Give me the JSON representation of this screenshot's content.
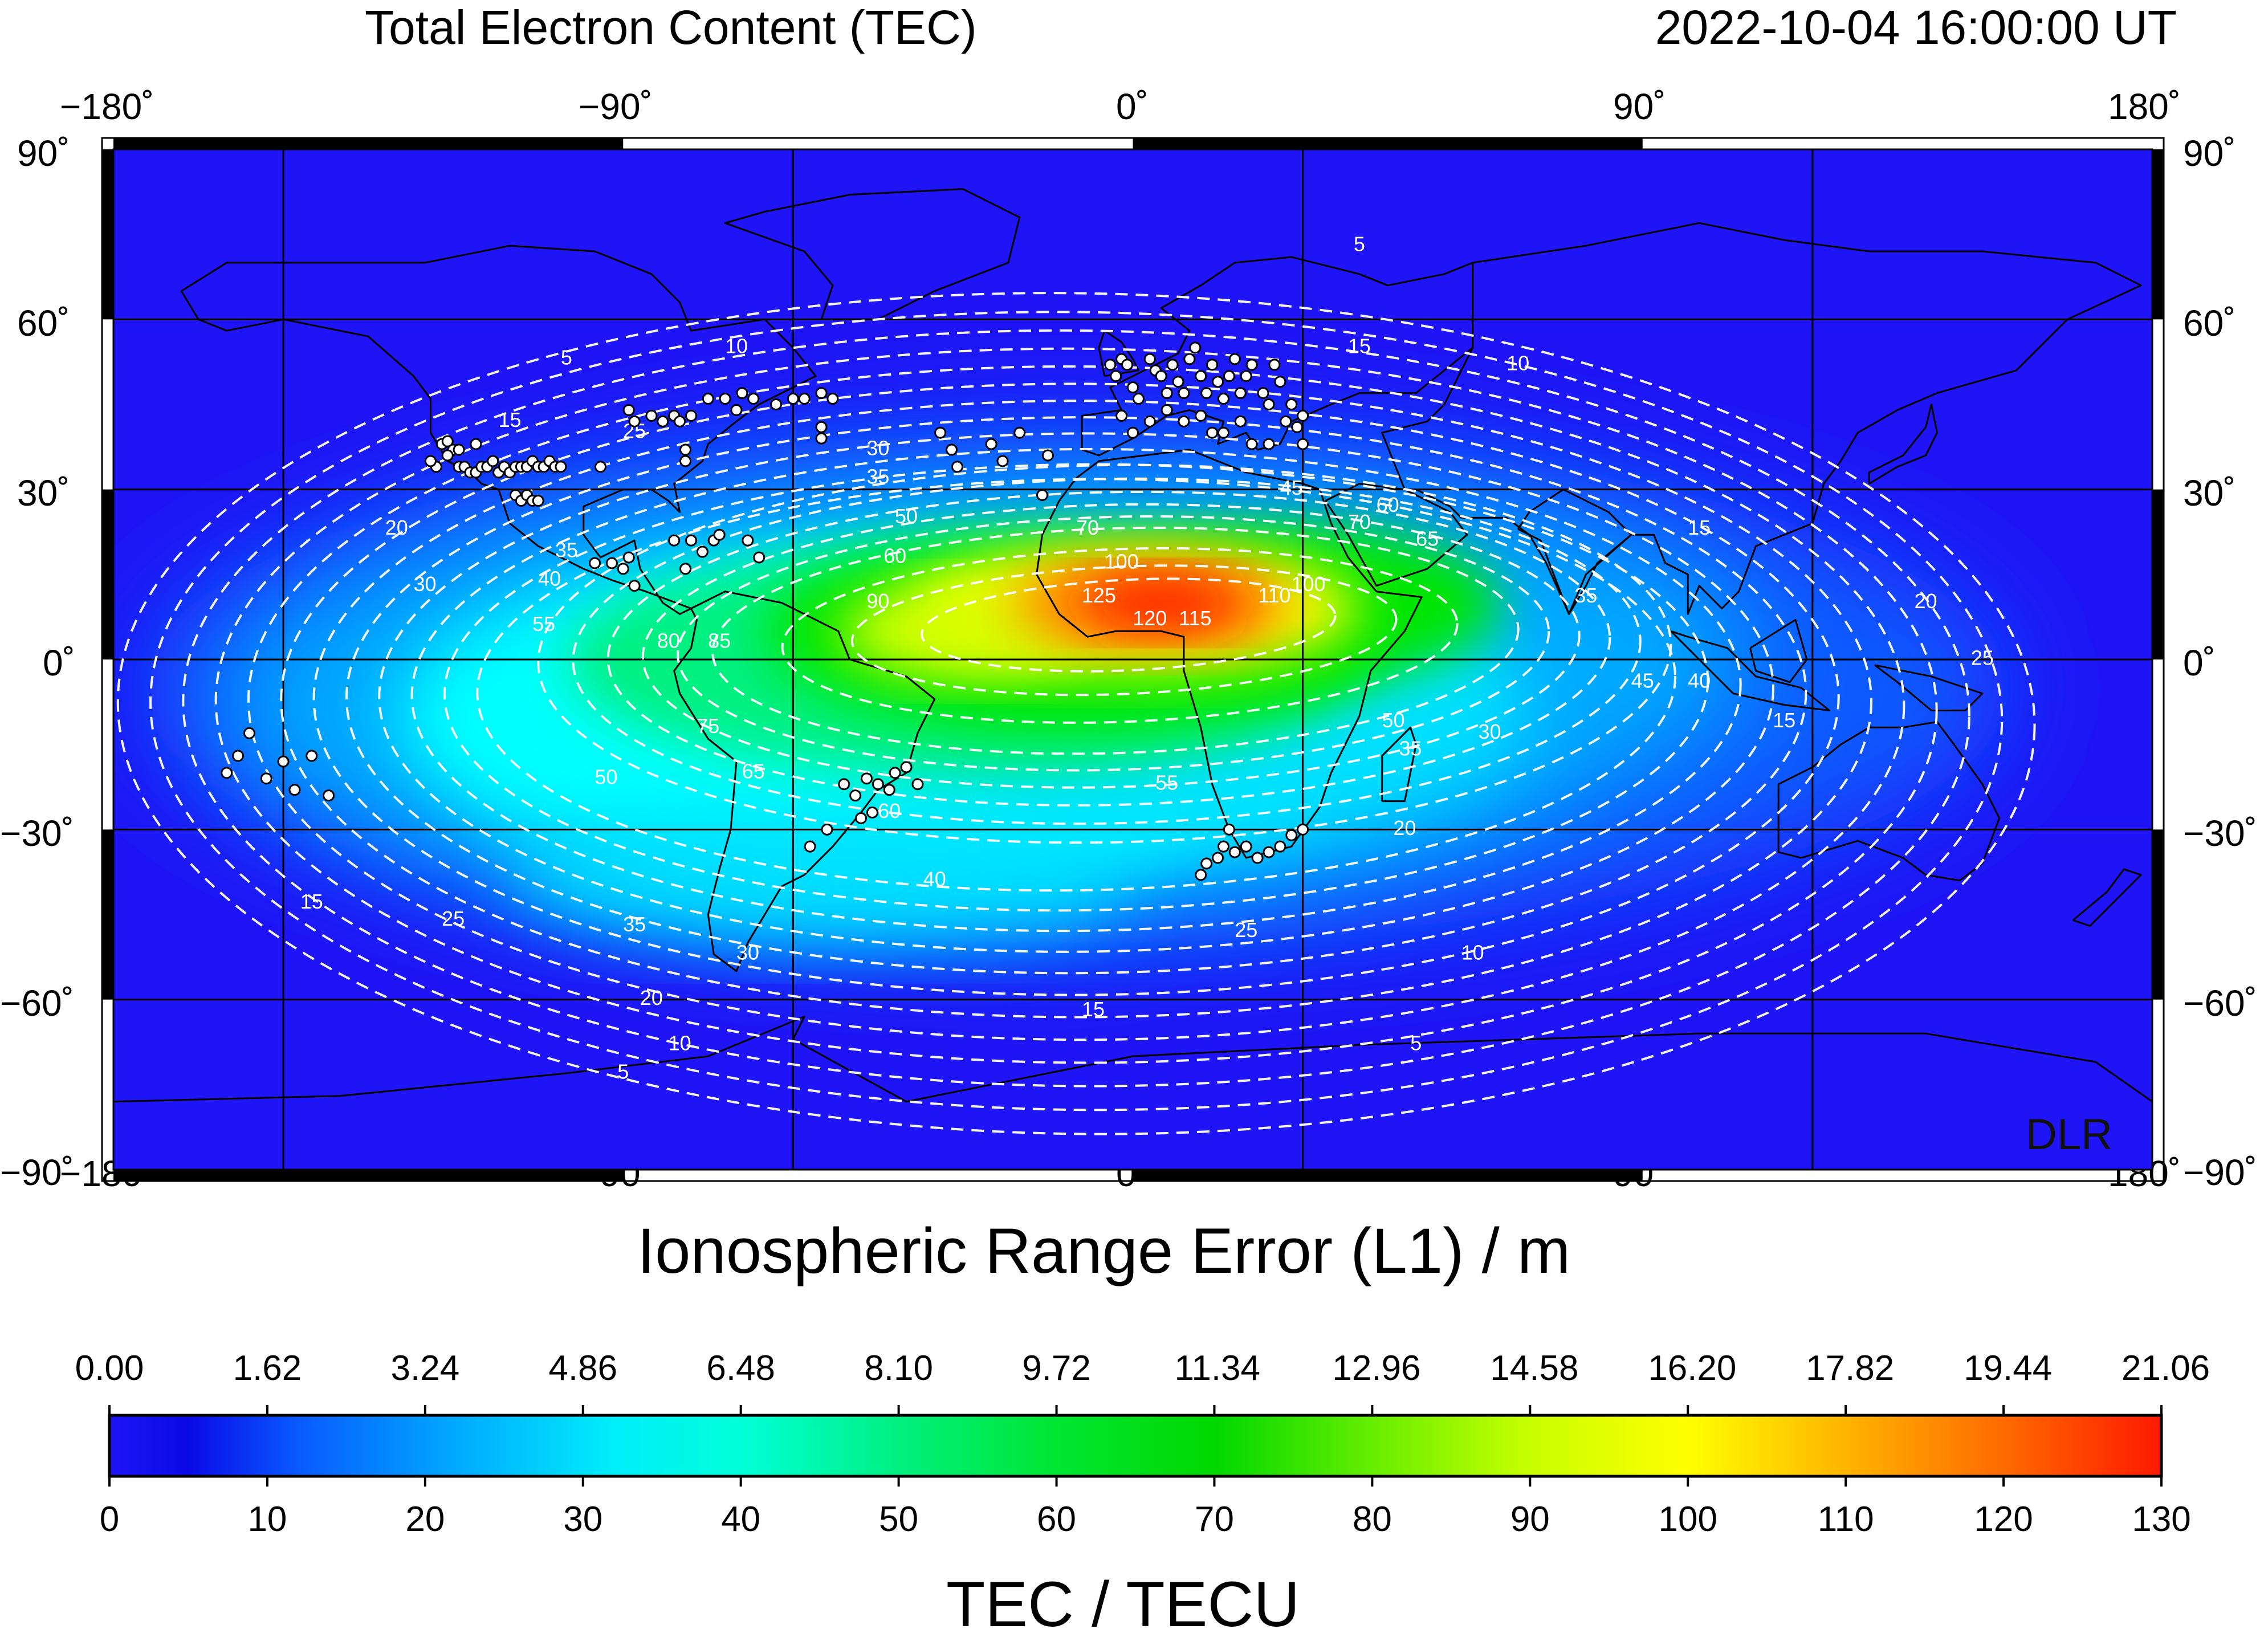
{
  "title": "Total Electron Content (TEC)",
  "timestamp": "2022-10-04  16:00:00 UT",
  "watermark": "DLR",
  "map": {
    "lon_ticks": [
      "−180˚",
      "−90˚",
      "0˚",
      "90˚",
      "180˚"
    ],
    "lat_ticks": [
      "90˚",
      "60˚",
      "30˚",
      "0˚",
      "−30˚",
      "−60˚",
      "−90˚"
    ],
    "lon_range": [
      -180,
      180
    ],
    "lat_range": [
      -90,
      90
    ],
    "graticule_step_deg": 30,
    "colors": {
      "low": "#1a1af5",
      "mid": "#00ffff",
      "green": "#00e600",
      "yellow": "#ffff00",
      "high": "#ff1a00"
    },
    "contour_labels": [
      {
        "text": "5",
        "lon": 40,
        "lat": 73
      },
      {
        "text": "5",
        "lon": -100,
        "lat": 53
      },
      {
        "text": "5",
        "lon": -90,
        "lat": -73
      },
      {
        "text": "5",
        "lon": 50,
        "lat": -68
      },
      {
        "text": "10",
        "lon": -70,
        "lat": 55
      },
      {
        "text": "10",
        "lon": 68,
        "lat": 52
      },
      {
        "text": "10",
        "lon": -80,
        "lat": -68
      },
      {
        "text": "10",
        "lon": 60,
        "lat": -52
      },
      {
        "text": "15",
        "lon": -110,
        "lat": 42
      },
      {
        "text": "15",
        "lon": 40,
        "lat": 55
      },
      {
        "text": "15",
        "lon": 100,
        "lat": 23
      },
      {
        "text": "15",
        "lon": 115,
        "lat": -11
      },
      {
        "text": "15",
        "lon": -145,
        "lat": -43
      },
      {
        "text": "15",
        "lon": -7,
        "lat": -62
      },
      {
        "text": "20",
        "lon": -130,
        "lat": 23
      },
      {
        "text": "20",
        "lon": 140,
        "lat": 10
      },
      {
        "text": "20",
        "lon": 48,
        "lat": -30
      },
      {
        "text": "20",
        "lon": -85,
        "lat": -60
      },
      {
        "text": "25",
        "lon": -88,
        "lat": 40
      },
      {
        "text": "25",
        "lon": 150,
        "lat": 0
      },
      {
        "text": "25",
        "lon": -120,
        "lat": -46
      },
      {
        "text": "25",
        "lon": 20,
        "lat": -48
      },
      {
        "text": "30",
        "lon": -125,
        "lat": 13
      },
      {
        "text": "30",
        "lon": -45,
        "lat": 37
      },
      {
        "text": "30",
        "lon": 63,
        "lat": -13
      },
      {
        "text": "30",
        "lon": -68,
        "lat": -52
      },
      {
        "text": "35",
        "lon": -45,
        "lat": 32
      },
      {
        "text": "35",
        "lon": -100,
        "lat": 19
      },
      {
        "text": "35",
        "lon": 49,
        "lat": -16
      },
      {
        "text": "35",
        "lon": -88,
        "lat": -47
      },
      {
        "text": "35",
        "lon": 80,
        "lat": 11
      },
      {
        "text": "40",
        "lon": -103,
        "lat": 14
      },
      {
        "text": "40",
        "lon": -35,
        "lat": -39
      },
      {
        "text": "40",
        "lon": 100,
        "lat": -4
      },
      {
        "text": "45",
        "lon": 28,
        "lat": 30
      },
      {
        "text": "45",
        "lon": 90,
        "lat": -4
      },
      {
        "text": "50",
        "lon": -40,
        "lat": 25
      },
      {
        "text": "50",
        "lon": -93,
        "lat": -21
      },
      {
        "text": "50",
        "lon": 46,
        "lat": -11
      },
      {
        "text": "55",
        "lon": -104,
        "lat": 6
      },
      {
        "text": "55",
        "lon": 6,
        "lat": -22
      },
      {
        "text": "60",
        "lon": -42,
        "lat": 18
      },
      {
        "text": "60",
        "lon": 45,
        "lat": 27
      },
      {
        "text": "60",
        "lon": -43,
        "lat": -27
      },
      {
        "text": "65",
        "lon": 52,
        "lat": 21
      },
      {
        "text": "65",
        "lon": -67,
        "lat": -20
      },
      {
        "text": "70",
        "lon": -8,
        "lat": 23
      },
      {
        "text": "70",
        "lon": 40,
        "lat": 24
      },
      {
        "text": "75",
        "lon": -75,
        "lat": -12
      },
      {
        "text": "80",
        "lon": -82,
        "lat": 3
      },
      {
        "text": "85",
        "lon": -73,
        "lat": 3
      },
      {
        "text": "90",
        "lon": -45,
        "lat": 10
      },
      {
        "text": "100",
        "lon": -2,
        "lat": 17
      },
      {
        "text": "100",
        "lon": 31,
        "lat": 13
      },
      {
        "text": "110",
        "lon": 25,
        "lat": 11
      },
      {
        "text": "120",
        "lon": 3,
        "lat": 7
      },
      {
        "text": "125",
        "lon": -6,
        "lat": 11
      },
      {
        "text": "115",
        "lon": 11,
        "lat": 7
      }
    ],
    "stations": [
      [
        -122,
        38
      ],
      [
        -121,
        38.5
      ],
      [
        -120,
        37
      ],
      [
        -119,
        34
      ],
      [
        -118,
        34
      ],
      [
        -117,
        33
      ],
      [
        -116,
        33
      ],
      [
        -115,
        34
      ],
      [
        -114,
        34
      ],
      [
        -113,
        35
      ],
      [
        -112,
        33
      ],
      [
        -111,
        34
      ],
      [
        -110,
        33
      ],
      [
        -109,
        34
      ],
      [
        -108,
        34
      ],
      [
        -107,
        34
      ],
      [
        -106,
        35
      ],
      [
        -105,
        34
      ],
      [
        -104,
        34
      ],
      [
        -103,
        35
      ],
      [
        -102,
        34
      ],
      [
        -101,
        34
      ],
      [
        -123,
        34
      ],
      [
        -124,
        35
      ],
      [
        -116,
        38
      ],
      [
        -119,
        37
      ],
      [
        -121,
        36
      ],
      [
        -109,
        29
      ],
      [
        -108,
        28
      ],
      [
        -107,
        29
      ],
      [
        -106,
        28
      ],
      [
        -105,
        28
      ],
      [
        -89,
        44
      ],
      [
        -88,
        42
      ],
      [
        -85,
        43
      ],
      [
        -83,
        42
      ],
      [
        -81,
        43
      ],
      [
        -80,
        42
      ],
      [
        -78,
        43
      ],
      [
        -75,
        46
      ],
      [
        -72,
        46
      ],
      [
        -70,
        44
      ],
      [
        -69,
        47
      ],
      [
        -67,
        46
      ],
      [
        -63,
        45
      ],
      [
        -60,
        46
      ],
      [
        -58,
        46
      ],
      [
        -55,
        47
      ],
      [
        -53,
        46
      ],
      [
        -55,
        41
      ],
      [
        -55,
        39
      ],
      [
        -94,
        34
      ],
      [
        -79,
        37
      ],
      [
        -79,
        35
      ],
      [
        -95,
        17
      ],
      [
        -92,
        17
      ],
      [
        -90,
        16
      ],
      [
        -88,
        13
      ],
      [
        -81,
        21
      ],
      [
        -78,
        21
      ],
      [
        -76,
        19
      ],
      [
        -74,
        21
      ],
      [
        -73,
        22
      ],
      [
        -68,
        21
      ],
      [
        -66,
        18
      ],
      [
        -79,
        16
      ],
      [
        -89,
        18
      ],
      [
        -34,
        40
      ],
      [
        -32,
        37
      ],
      [
        -31,
        34
      ],
      [
        -25,
        38
      ],
      [
        -23,
        35
      ],
      [
        -20,
        40
      ],
      [
        -16,
        29
      ],
      [
        -15,
        36
      ],
      [
        -4,
        52
      ],
      [
        -3,
        50
      ],
      [
        -2,
        53
      ],
      [
        -1,
        52
      ],
      [
        0,
        48
      ],
      [
        1,
        46
      ],
      [
        3,
        53
      ],
      [
        4,
        51
      ],
      [
        5,
        50
      ],
      [
        6,
        47
      ],
      [
        7,
        52
      ],
      [
        8,
        49
      ],
      [
        9,
        47
      ],
      [
        10,
        53
      ],
      [
        11,
        55
      ],
      [
        12,
        50
      ],
      [
        13,
        47
      ],
      [
        14,
        52
      ],
      [
        15,
        49
      ],
      [
        16,
        46
      ],
      [
        17,
        50
      ],
      [
        18,
        53
      ],
      [
        19,
        47
      ],
      [
        20,
        50
      ],
      [
        21,
        52
      ],
      [
        23,
        47
      ],
      [
        24,
        45
      ],
      [
        25,
        52
      ],
      [
        26,
        49
      ],
      [
        27,
        42
      ],
      [
        28,
        45
      ],
      [
        29,
        41
      ],
      [
        30,
        43
      ],
      [
        6,
        44
      ],
      [
        9,
        42
      ],
      [
        12,
        43
      ],
      [
        14,
        40
      ],
      [
        16,
        40
      ],
      [
        19,
        42
      ],
      [
        21,
        38
      ],
      [
        24,
        38
      ],
      [
        30,
        38
      ],
      [
        0,
        40
      ],
      [
        -2,
        43
      ],
      [
        3,
        42
      ],
      [
        -160,
        -20
      ],
      [
        -158,
        -17
      ],
      [
        -156,
        -13
      ],
      [
        -153,
        -21
      ],
      [
        -150,
        -18
      ],
      [
        -148,
        -23
      ],
      [
        -145,
        -17
      ],
      [
        -142,
        -24
      ],
      [
        -51,
        -22
      ],
      [
        -49,
        -24
      ],
      [
        -47,
        -21
      ],
      [
        -45,
        -22
      ],
      [
        -43,
        -23
      ],
      [
        -42,
        -20
      ],
      [
        -40,
        -19
      ],
      [
        -38,
        -22
      ],
      [
        -46,
        -27
      ],
      [
        -48,
        -28
      ],
      [
        -54,
        -30
      ],
      [
        -57,
        -33
      ],
      [
        12,
        -38
      ],
      [
        13,
        -36
      ],
      [
        15,
        -35
      ],
      [
        16,
        -33
      ],
      [
        18,
        -34
      ],
      [
        20,
        -33
      ],
      [
        22,
        -35
      ],
      [
        24,
        -34
      ],
      [
        26,
        -33
      ],
      [
        28,
        -31
      ],
      [
        30,
        -30
      ],
      [
        17,
        -30
      ]
    ]
  },
  "colorbar": {
    "title_top": "Ionospheric Range Error (L1) / m",
    "title_bottom": "TEC / TECU",
    "top_ticks": [
      "0.00",
      "1.62",
      "3.24",
      "4.86",
      "6.48",
      "8.10",
      "9.72",
      "11.34",
      "12.96",
      "14.58",
      "16.20",
      "17.82",
      "19.44",
      "21.06"
    ],
    "bottom_ticks": [
      "0",
      "10",
      "20",
      "30",
      "40",
      "50",
      "60",
      "70",
      "80",
      "90",
      "100",
      "110",
      "120",
      "130"
    ],
    "range_tecu": [
      0,
      130
    ],
    "stops": [
      {
        "v": 0,
        "c": "#1e14f5"
      },
      {
        "v": 5,
        "c": "#0a0ae6"
      },
      {
        "v": 12,
        "c": "#0a5aff"
      },
      {
        "v": 22,
        "c": "#00aaff"
      },
      {
        "v": 32,
        "c": "#00eefa"
      },
      {
        "v": 40,
        "c": "#00ffd8"
      },
      {
        "v": 50,
        "c": "#00f080"
      },
      {
        "v": 60,
        "c": "#00e632"
      },
      {
        "v": 70,
        "c": "#00d800"
      },
      {
        "v": 80,
        "c": "#66ee00"
      },
      {
        "v": 90,
        "c": "#c8ff00"
      },
      {
        "v": 100,
        "c": "#ffff00"
      },
      {
        "v": 110,
        "c": "#ffb400"
      },
      {
        "v": 120,
        "c": "#ff6a00"
      },
      {
        "v": 130,
        "c": "#ff1a00"
      }
    ]
  }
}
